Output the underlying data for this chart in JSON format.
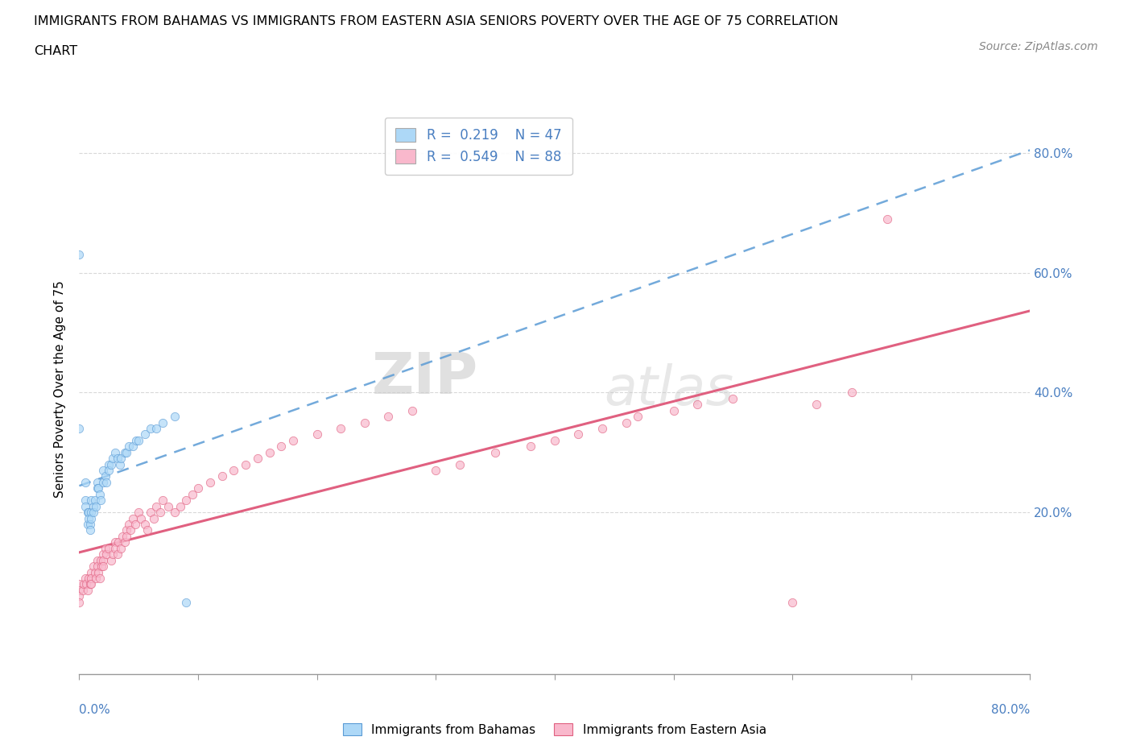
{
  "title_line1": "IMMIGRANTS FROM BAHAMAS VS IMMIGRANTS FROM EASTERN ASIA SENIORS POVERTY OVER THE AGE OF 75 CORRELATION",
  "title_line2": "CHART",
  "source": "Source: ZipAtlas.com",
  "ylabel": "Seniors Poverty Over the Age of 75",
  "ytick_values": [
    0.0,
    0.2,
    0.4,
    0.6,
    0.8
  ],
  "ytick_labels": [
    "",
    "20.0%",
    "40.0%",
    "60.0%",
    "80.0%"
  ],
  "xlim": [
    0.0,
    0.8
  ],
  "ylim": [
    -0.07,
    0.88
  ],
  "watermark_zip": "ZIP",
  "watermark_atlas": "atlas",
  "legend1_label": "Immigrants from Bahamas",
  "legend2_label": "Immigrants from Eastern Asia",
  "R_bahamas": 0.219,
  "N_bahamas": 47,
  "R_eastern_asia": 0.549,
  "N_eastern_asia": 88,
  "bahamas_color": "#add8f7",
  "eastern_asia_color": "#f9b8cc",
  "bahamas_edge_color": "#5b9bd5",
  "eastern_asia_edge_color": "#e06080",
  "bahamas_line_color": "#5b9bd5",
  "eastern_asia_line_color": "#e06080",
  "scatter_alpha": 0.7,
  "scatter_size": 55,
  "bahamas_x": [
    0.0,
    0.0,
    0.005,
    0.005,
    0.005,
    0.007,
    0.007,
    0.008,
    0.008,
    0.009,
    0.009,
    0.01,
    0.01,
    0.01,
    0.012,
    0.012,
    0.013,
    0.014,
    0.015,
    0.015,
    0.016,
    0.017,
    0.018,
    0.02,
    0.02,
    0.022,
    0.023,
    0.025,
    0.025,
    0.027,
    0.028,
    0.03,
    0.032,
    0.034,
    0.035,
    0.038,
    0.04,
    0.042,
    0.045,
    0.048,
    0.05,
    0.055,
    0.06,
    0.065,
    0.07,
    0.08,
    0.09
  ],
  "bahamas_y": [
    0.63,
    0.34,
    0.25,
    0.22,
    0.21,
    0.2,
    0.18,
    0.2,
    0.19,
    0.18,
    0.17,
    0.22,
    0.2,
    0.19,
    0.21,
    0.2,
    0.22,
    0.21,
    0.25,
    0.24,
    0.24,
    0.23,
    0.22,
    0.27,
    0.25,
    0.26,
    0.25,
    0.28,
    0.27,
    0.28,
    0.29,
    0.3,
    0.29,
    0.28,
    0.29,
    0.3,
    0.3,
    0.31,
    0.31,
    0.32,
    0.32,
    0.33,
    0.34,
    0.34,
    0.35,
    0.36,
    0.05
  ],
  "eastern_asia_x": [
    0.0,
    0.0,
    0.0,
    0.0,
    0.003,
    0.004,
    0.005,
    0.006,
    0.007,
    0.008,
    0.009,
    0.01,
    0.01,
    0.01,
    0.012,
    0.013,
    0.014,
    0.015,
    0.015,
    0.016,
    0.017,
    0.018,
    0.019,
    0.02,
    0.02,
    0.02,
    0.022,
    0.023,
    0.025,
    0.027,
    0.028,
    0.03,
    0.03,
    0.032,
    0.033,
    0.035,
    0.036,
    0.038,
    0.04,
    0.04,
    0.042,
    0.043,
    0.045,
    0.047,
    0.05,
    0.052,
    0.055,
    0.057,
    0.06,
    0.063,
    0.065,
    0.068,
    0.07,
    0.075,
    0.08,
    0.085,
    0.09,
    0.095,
    0.1,
    0.11,
    0.12,
    0.13,
    0.14,
    0.15,
    0.16,
    0.17,
    0.18,
    0.2,
    0.22,
    0.24,
    0.26,
    0.28,
    0.3,
    0.32,
    0.35,
    0.38,
    0.4,
    0.42,
    0.44,
    0.46,
    0.47,
    0.5,
    0.52,
    0.55,
    0.6,
    0.62,
    0.65,
    0.68
  ],
  "eastern_asia_y": [
    0.08,
    0.07,
    0.06,
    0.05,
    0.07,
    0.08,
    0.09,
    0.08,
    0.07,
    0.09,
    0.08,
    0.1,
    0.09,
    0.08,
    0.11,
    0.1,
    0.09,
    0.12,
    0.11,
    0.1,
    0.09,
    0.12,
    0.11,
    0.13,
    0.12,
    0.11,
    0.14,
    0.13,
    0.14,
    0.12,
    0.13,
    0.15,
    0.14,
    0.13,
    0.15,
    0.14,
    0.16,
    0.15,
    0.17,
    0.16,
    0.18,
    0.17,
    0.19,
    0.18,
    0.2,
    0.19,
    0.18,
    0.17,
    0.2,
    0.19,
    0.21,
    0.2,
    0.22,
    0.21,
    0.2,
    0.21,
    0.22,
    0.23,
    0.24,
    0.25,
    0.26,
    0.27,
    0.28,
    0.29,
    0.3,
    0.31,
    0.32,
    0.33,
    0.34,
    0.35,
    0.36,
    0.37,
    0.27,
    0.28,
    0.3,
    0.31,
    0.32,
    0.33,
    0.34,
    0.35,
    0.36,
    0.37,
    0.38,
    0.39,
    0.05,
    0.38,
    0.4,
    0.69
  ]
}
